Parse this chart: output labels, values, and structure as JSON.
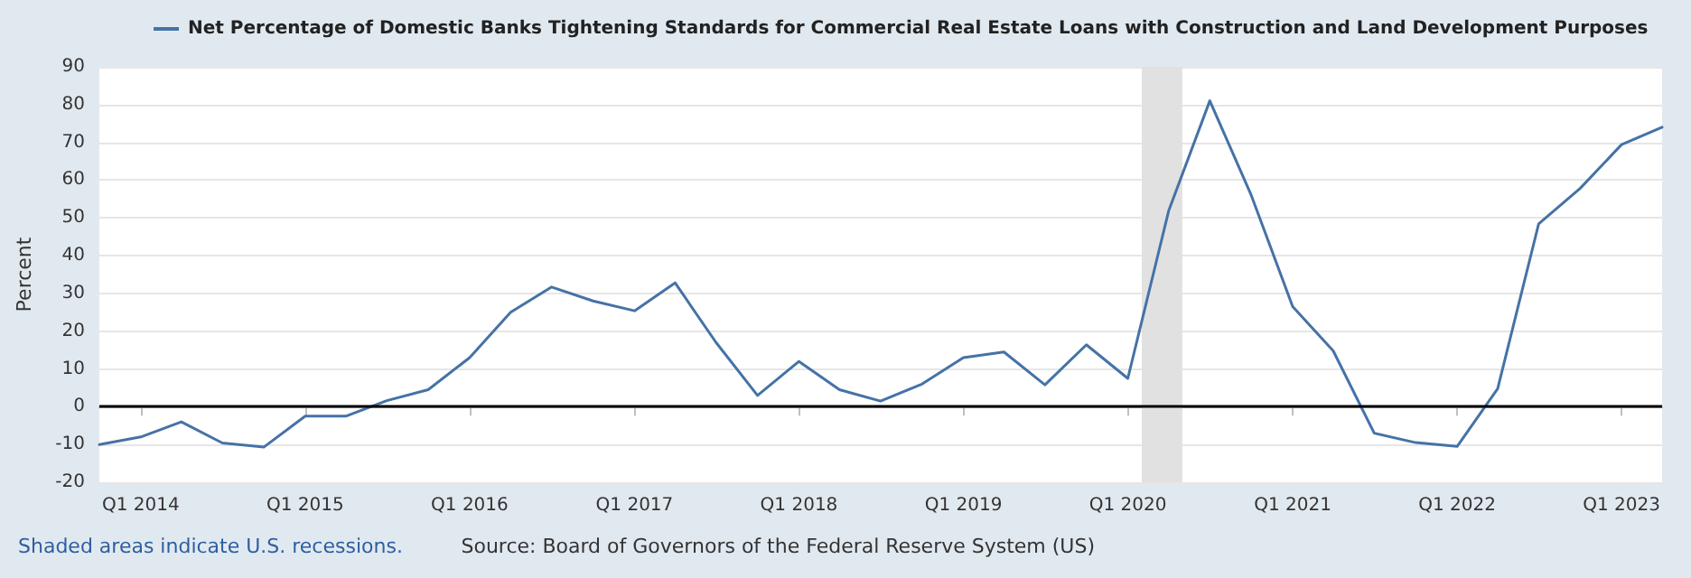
{
  "chart_data": {
    "type": "line",
    "ylabel": "Percent",
    "x": [
      "2013-10",
      "2014-01",
      "2014-04",
      "2014-07",
      "2014-10",
      "2015-01",
      "2015-04",
      "2015-07",
      "2015-10",
      "2016-01",
      "2016-04",
      "2016-07",
      "2016-10",
      "2017-01",
      "2017-04",
      "2017-07",
      "2017-10",
      "2018-01",
      "2018-04",
      "2018-07",
      "2018-10",
      "2019-01",
      "2019-04",
      "2019-07",
      "2019-10",
      "2020-01",
      "2020-04",
      "2020-07",
      "2020-10",
      "2021-01",
      "2021-04",
      "2021-07",
      "2021-10",
      "2022-01",
      "2022-04",
      "2022-07",
      "2022-10",
      "2023-01",
      "2023-04"
    ],
    "series": [
      {
        "name": "Net Percentage of Domestic Banks Tightening Standards for Commercial Real Estate Loans with Construction and Land Development Purposes",
        "color": "#4572a7",
        "values": [
          -10,
          -8,
          -4,
          -9.6,
          -10.7,
          -2.5,
          -2.5,
          1.6,
          4.5,
          13,
          25,
          31.7,
          28,
          25.4,
          32.8,
          17,
          3,
          12,
          4.5,
          1.5,
          6,
          13,
          14.5,
          5.8,
          16.4,
          7.5,
          52,
          81,
          56,
          26.5,
          14.8,
          -7,
          -9.5,
          -10.5,
          4.8,
          48.4,
          57.8,
          69.4,
          74
        ]
      }
    ],
    "xlim": [
      "2013-10",
      "2023-04"
    ],
    "xticks": [
      {
        "value": "2014-01",
        "label": "Q1 2014"
      },
      {
        "value": "2015-01",
        "label": "Q1 2015"
      },
      {
        "value": "2016-01",
        "label": "Q1 2016"
      },
      {
        "value": "2017-01",
        "label": "Q1 2017"
      },
      {
        "value": "2018-01",
        "label": "Q1 2018"
      },
      {
        "value": "2019-01",
        "label": "Q1 2019"
      },
      {
        "value": "2020-01",
        "label": "Q1 2020"
      },
      {
        "value": "2021-01",
        "label": "Q1 2021"
      },
      {
        "value": "2022-01",
        "label": "Q1 2022"
      },
      {
        "value": "2023-01",
        "label": "Q1 2023"
      }
    ],
    "ylim": [
      -20,
      90
    ],
    "yticks": [
      -20,
      -10,
      0,
      10,
      20,
      30,
      40,
      50,
      60,
      70,
      80,
      90
    ],
    "grid": "y",
    "legend": "top left",
    "marker": "none",
    "line_style": "solid",
    "ref_lines": [
      {
        "axis": "y",
        "value": 0,
        "color": "#000000"
      }
    ],
    "bands": [
      {
        "axis": "x",
        "from": "2020-02",
        "to": "2020-05",
        "color": "#e1e1e1"
      }
    ],
    "annotations": [
      "Shaded areas indicate U.S. recessions.",
      "Source: Board of Governors of the Federal Reserve System (US)"
    ]
  }
}
